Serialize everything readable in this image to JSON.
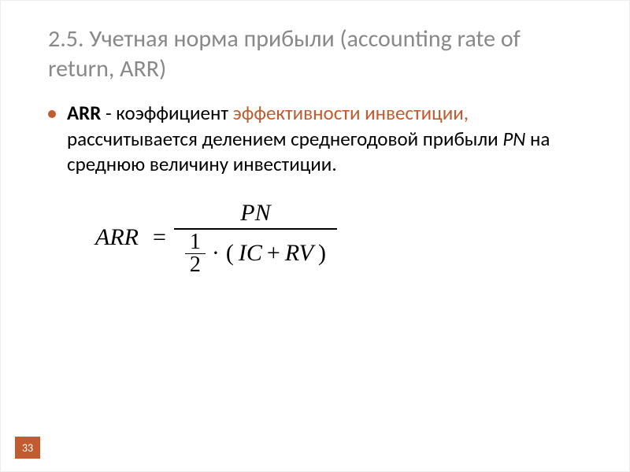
{
  "colors": {
    "title": "#898989",
    "accent": "#c25b2f",
    "bullet": "#c25b2f",
    "pagenum_bg": "#c25b2f",
    "body": "#000000"
  },
  "title": "2.5. Учетная норма прибыли (accounting rate of return, ARR)",
  "body": {
    "term": "ARR",
    "text1": " - коэффициент ",
    "accent": "эффективности инвестиции,",
    "text2": " рассчитывается делением среднегодовой прибыли ",
    "pn": "PN",
    "text3": " на среднюю величину инвестиции."
  },
  "formula": {
    "lhs": "ARR",
    "eq": "=",
    "numerator": "PN",
    "half_num": "1",
    "half_den": "2",
    "dot": "·",
    "lparen": "(",
    "ic": "IC",
    "plus": " + ",
    "rv": "RV",
    "rparen": ")"
  },
  "page_number": "33"
}
